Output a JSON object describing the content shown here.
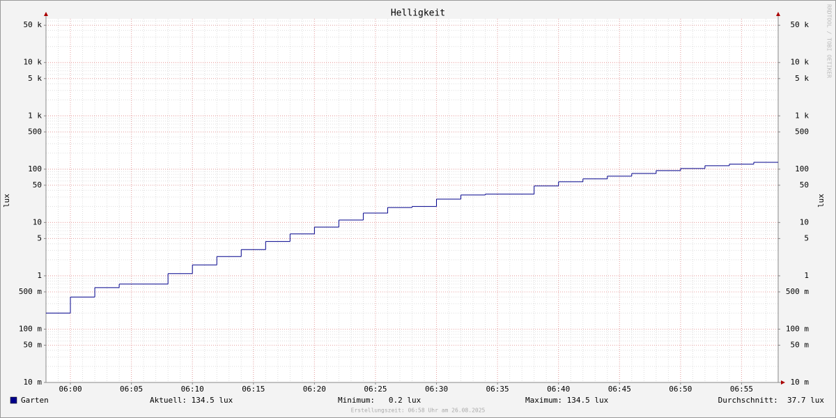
{
  "chart_data": {
    "type": "step",
    "title": "Helligkeit",
    "y_label": "lux",
    "watermark": "RRDTOOL / TOBI OETIKER",
    "footer": "Erstellungszeit: 06:58 Uhr am 26.08.2025",
    "stats": [
      "Aktuell: 134.5 lux",
      "Minimum:   0.2 lux",
      "Maximum: 134.5 lux",
      "Durchschnitt:  37.7 lux"
    ],
    "log_scale": true,
    "grid": true,
    "x": [
      "05:58",
      "06:00",
      "06:02",
      "06:04",
      "06:08",
      "06:10",
      "06:12",
      "06:14",
      "06:16",
      "06:18",
      "06:20",
      "06:22",
      "06:24",
      "06:26",
      "06:28",
      "06:30",
      "06:32",
      "06:34",
      "06:38",
      "06:40",
      "06:42",
      "06:44",
      "06:46",
      "06:48",
      "06:50",
      "06:52",
      "06:54",
      "06:56"
    ],
    "series": [
      {
        "name": "Garten",
        "color": "#00008b",
        "values": [
          0.2,
          0.4,
          0.6,
          0.7,
          1.1,
          1.6,
          2.3,
          3.1,
          4.4,
          6.1,
          8.2,
          11.1,
          15,
          19.1,
          20,
          27.4,
          32.8,
          34,
          48.5,
          58,
          65.7,
          74,
          83,
          94,
          103,
          116,
          124,
          134.5
        ]
      }
    ],
    "xlim": [
      "05:58",
      "06:58"
    ],
    "xticks": [
      "06:00",
      "06:05",
      "06:10",
      "06:15",
      "06:20",
      "06:25",
      "06:30",
      "06:35",
      "06:40",
      "06:45",
      "06:50",
      "06:55"
    ],
    "ylim": [
      0.01,
      66000
    ],
    "yticks": [
      {
        "value": 0.01,
        "label": "10 m"
      },
      {
        "value": 0.05,
        "label": "50 m"
      },
      {
        "value": 0.1,
        "label": "100 m"
      },
      {
        "value": 0.5,
        "label": "500 m"
      },
      1,
      5,
      10,
      50,
      100,
      500,
      {
        "value": 1000,
        "label": "1 k"
      },
      {
        "value": 5000,
        "label": "5 k"
      },
      {
        "value": 10000,
        "label": "10 k"
      },
      {
        "value": 50000,
        "label": "50 k"
      }
    ]
  }
}
